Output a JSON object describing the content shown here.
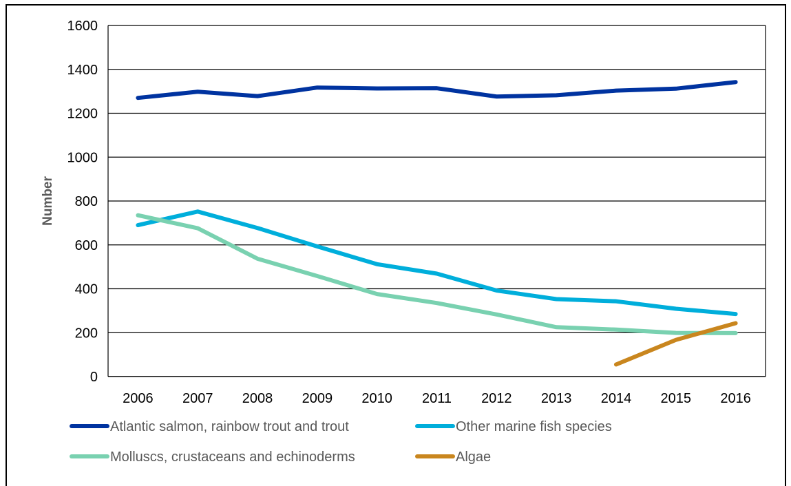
{
  "chart_data": {
    "type": "line",
    "title": "",
    "xlabel": "",
    "ylabel": "Number",
    "ylim": [
      0,
      1600
    ],
    "yticks": [
      0,
      200,
      400,
      600,
      800,
      1000,
      1200,
      1400,
      1600
    ],
    "grid": "horizontal",
    "legend_placement": "bottom",
    "categories": [
      "2006",
      "2007",
      "2008",
      "2009",
      "2010",
      "2011",
      "2012",
      "2013",
      "2014",
      "2015",
      "2016"
    ],
    "series": [
      {
        "name": "Atlantic salmon, rainbow trout and trout",
        "color": "#0033A0",
        "values": [
          1270,
          1298,
          1278,
          1317,
          1313,
          1314,
          1276,
          1282,
          1303,
          1312,
          1342
        ]
      },
      {
        "name": "Other marine fish species",
        "color": "#00AEDB",
        "values": [
          690,
          752,
          677,
          593,
          512,
          469,
          392,
          353,
          343,
          309,
          285
        ]
      },
      {
        "name": "Molluscs, crustaceans and echinoderms",
        "color": "#79D1B0",
        "values": [
          735,
          676,
          537,
          458,
          376,
          335,
          283,
          225,
          214,
          199,
          198
        ]
      },
      {
        "name": "Algae",
        "color": "#C9861E",
        "values": [
          null,
          null,
          null,
          null,
          null,
          null,
          null,
          null,
          55,
          167,
          243
        ]
      }
    ]
  }
}
